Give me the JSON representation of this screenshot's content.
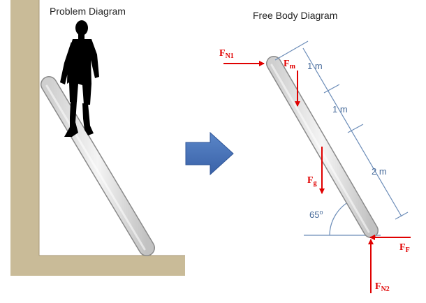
{
  "problem_title": "Problem Diagram",
  "fbd_title": "Free Body Diagram",
  "forces": {
    "fn1": {
      "main": "F",
      "sub": "N1"
    },
    "fm": {
      "main": "F",
      "sub": "m"
    },
    "fg": {
      "main": "F",
      "sub": "g"
    },
    "ff": {
      "main": "F",
      "sub": "F"
    },
    "fn2": {
      "main": "F",
      "sub": "N2"
    }
  },
  "dimensions": {
    "seg1": "1 m",
    "seg2": "1 m",
    "seg3": "2 m"
  },
  "angle": {
    "value": "65",
    "unit": "o"
  },
  "colors": {
    "force_arrow": "#e00000",
    "wall": "#c9bb98",
    "dimension_line": "#6b8cb8",
    "transition_arrow": "#4a72b8",
    "ladder_fill": "#e6e6e6"
  },
  "icons": {
    "person": "person-silhouette-icon",
    "transition": "right-arrow-icon"
  }
}
